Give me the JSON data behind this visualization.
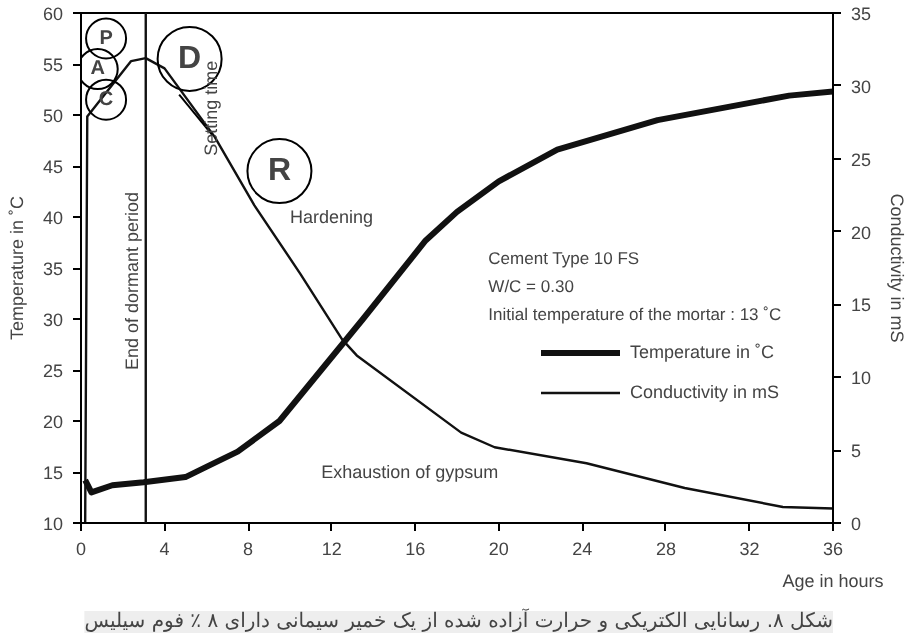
{
  "chart_data": {
    "type": "line",
    "xlabel": "Age in hours",
    "ylabel": "Temperature in ˚C",
    "y2label": "Conductivity in mS",
    "xlim": [
      0,
      36
    ],
    "xticks": [
      0,
      4,
      8,
      12,
      16,
      20,
      24,
      28,
      32,
      36
    ],
    "ylim": [
      10,
      60
    ],
    "yticks": [
      10,
      15,
      20,
      25,
      30,
      35,
      40,
      45,
      50,
      55,
      60
    ],
    "y2lim": [
      0,
      35
    ],
    "y2ticks": [
      0,
      5,
      10,
      15,
      20,
      25,
      30,
      35
    ],
    "grid": false,
    "legend": "right",
    "marker": "none",
    "line_style": "solid",
    "series": [
      {
        "name": "Temperature in ˚C",
        "color": "#111111",
        "x": [
          0.2,
          0.5,
          1.5,
          3,
          5,
          6,
          7.5,
          9.5,
          11.5,
          13.5,
          16.5,
          18,
          20,
          22.8,
          27.6,
          33.9,
          36
        ],
        "values": [
          14.2,
          13,
          13.7,
          14,
          14.5,
          15.5,
          17,
          20,
          25,
          30,
          37.7,
          40.5,
          43.5,
          46.6,
          49.5,
          51.9,
          52.3
        ]
      },
      {
        "name": "Conductivity in mS",
        "color": "#111111",
        "axis": "y2",
        "x": [
          0.2,
          0.3,
          2.4,
          3.1,
          4,
          6.4,
          8.3,
          10.5,
          12.5,
          13.2,
          18.2,
          19.8,
          24.2,
          28.9,
          33.6,
          36
        ],
        "values": [
          0,
          27.9,
          31.7,
          31.9,
          31.2,
          26.5,
          21.8,
          17.1,
          12.6,
          11.5,
          6.2,
          5.2,
          4.1,
          2.4,
          1.1,
          1.0
        ]
      }
    ],
    "ref_lines": [
      {
        "axis": "x",
        "value": 3.1,
        "label": "End of dormant period",
        "color": "#111111",
        "line_style": "solid"
      }
    ],
    "annotations": [
      {
        "text": "P",
        "x": 1.2,
        "y": 57.5
      },
      {
        "text": "A",
        "x": 0.8,
        "y": 54.5
      },
      {
        "text": "C",
        "x": 1.2,
        "y": 51.5
      },
      {
        "text": "D",
        "x": 5.2,
        "y": 55.5
      },
      {
        "text": "R",
        "x": 9.5,
        "y": 44.5
      },
      "Setting time",
      "Hardening",
      "Exhaustion of gypsum",
      "Cement Type 10 FS",
      "W/C = 0.30",
      "Initial temperature of the mortar : 13 ˚C",
      "شکل ۸. رسانایی الکتریکی و حرارت آزاده شده از یک خمیر سیمانی دارای ۸ ٪ فوم سیلیس"
    ]
  }
}
